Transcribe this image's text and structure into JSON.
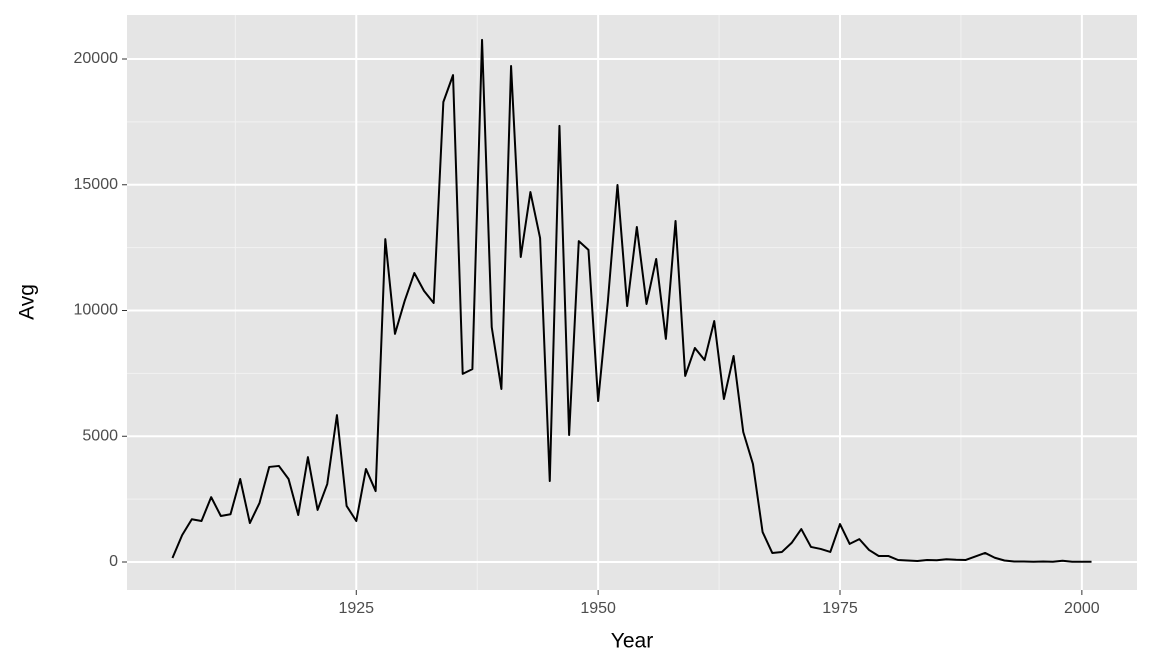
{
  "chart_data": {
    "type": "line",
    "x_label": "Year",
    "y_label": "Avg",
    "x": [
      1906,
      1907,
      1908,
      1909,
      1910,
      1911,
      1912,
      1913,
      1914,
      1915,
      1916,
      1917,
      1918,
      1919,
      1920,
      1921,
      1922,
      1923,
      1924,
      1925,
      1926,
      1927,
      1928,
      1929,
      1930,
      1931,
      1932,
      1933,
      1934,
      1935,
      1936,
      1937,
      1938,
      1939,
      1940,
      1941,
      1942,
      1943,
      1944,
      1945,
      1946,
      1947,
      1948,
      1949,
      1950,
      1951,
      1952,
      1953,
      1954,
      1955,
      1956,
      1957,
      1958,
      1959,
      1960,
      1961,
      1962,
      1963,
      1964,
      1965,
      1966,
      1967,
      1968,
      1969,
      1970,
      1971,
      1972,
      1973,
      1974,
      1975,
      1976,
      1977,
      1978,
      1979,
      1980,
      1981,
      1982,
      1983,
      1984,
      1985,
      1986,
      1987,
      1988,
      1989,
      1990,
      1991,
      1992,
      1993,
      1994,
      1995,
      1996,
      1997,
      1998,
      1999,
      2000,
      2001
    ],
    "series": [
      {
        "name": "Avg",
        "color": "#000000",
        "values": [
          160,
          1070,
          1700,
          1630,
          2580,
          1830,
          1900,
          3300,
          1550,
          2350,
          3780,
          3820,
          3300,
          1870,
          4170,
          2070,
          3100,
          5840,
          2230,
          1630,
          3700,
          2820,
          12840,
          9070,
          10380,
          11490,
          10780,
          10300,
          18290,
          19360,
          7480,
          7670,
          20760,
          9340,
          6880,
          19720,
          12130,
          14710,
          12880,
          3220,
          17340,
          5050,
          12760,
          12410,
          6400,
          10340,
          14990,
          10180,
          13320,
          10260,
          12050,
          8870,
          13560,
          7400,
          8510,
          8030,
          9580,
          6480,
          8190,
          5170,
          3900,
          1190,
          360,
          400,
          760,
          1310,
          600,
          520,
          400,
          1510,
          720,
          910,
          480,
          240,
          240,
          80,
          60,
          40,
          80,
          70,
          110,
          90,
          80,
          220,
          360,
          170,
          60,
          20,
          20,
          10,
          20,
          10,
          50,
          10,
          10,
          10
        ]
      }
    ],
    "xlim": [
      1901.3,
      2005.7
    ],
    "xticks": [
      1925,
      1950,
      1975,
      2000
    ],
    "ylim": [
      -1113,
      21750
    ],
    "yticks": [
      0,
      5000,
      10000,
      15000,
      20000
    ],
    "grid": true
  }
}
